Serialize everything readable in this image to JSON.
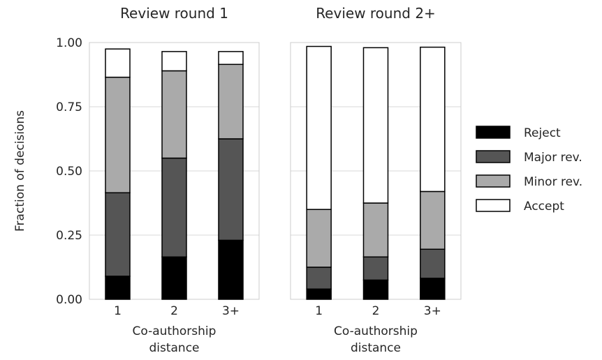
{
  "chart_data": [
    {
      "type": "bar",
      "stacked": true,
      "title": "Review round 1",
      "xlabel": "Co-authorship distance",
      "ylabel": "Fraction of decisions",
      "categories": [
        "1",
        "2",
        "3+"
      ],
      "ylim": [
        0,
        1
      ],
      "yticks": [
        "0.00",
        "0.25",
        "0.50",
        "0.75",
        "1.00"
      ],
      "grid": "horizontal",
      "series": [
        {
          "name": "Reject",
          "values": [
            0.09,
            0.165,
            0.23
          ]
        },
        {
          "name": "Major rev.",
          "values": [
            0.325,
            0.385,
            0.395
          ]
        },
        {
          "name": "Minor rev.",
          "values": [
            0.45,
            0.34,
            0.29
          ]
        },
        {
          "name": "Accept",
          "values": [
            0.11,
            0.075,
            0.05
          ]
        }
      ]
    },
    {
      "type": "bar",
      "stacked": true,
      "title": "Review round 2+",
      "xlabel": "Co-authorship distance",
      "ylabel": "",
      "categories": [
        "1",
        "2",
        "3+"
      ],
      "ylim": [
        0,
        1
      ],
      "yticks": [
        "0.00",
        "0.25",
        "0.50",
        "0.75",
        "1.00"
      ],
      "grid": "horizontal",
      "series": [
        {
          "name": "Reject",
          "values": [
            0.04,
            0.075,
            0.082
          ]
        },
        {
          "name": "Major rev.",
          "values": [
            0.085,
            0.09,
            0.113
          ]
        },
        {
          "name": "Minor rev.",
          "values": [
            0.225,
            0.21,
            0.225
          ]
        },
        {
          "name": "Accept",
          "values": [
            0.635,
            0.605,
            0.562
          ]
        }
      ]
    }
  ],
  "legend": {
    "placement": "right",
    "items": [
      {
        "label": "Reject",
        "color": "#000000"
      },
      {
        "label": "Major rev.",
        "color": "#555555"
      },
      {
        "label": "Minor rev.",
        "color": "#aaaaaa"
      },
      {
        "label": "Accept",
        "color": "#ffffff"
      }
    ]
  },
  "colors": {
    "grid": "#d9d9d9",
    "frame": "#cccccc",
    "bar_edge": "#000000"
  }
}
